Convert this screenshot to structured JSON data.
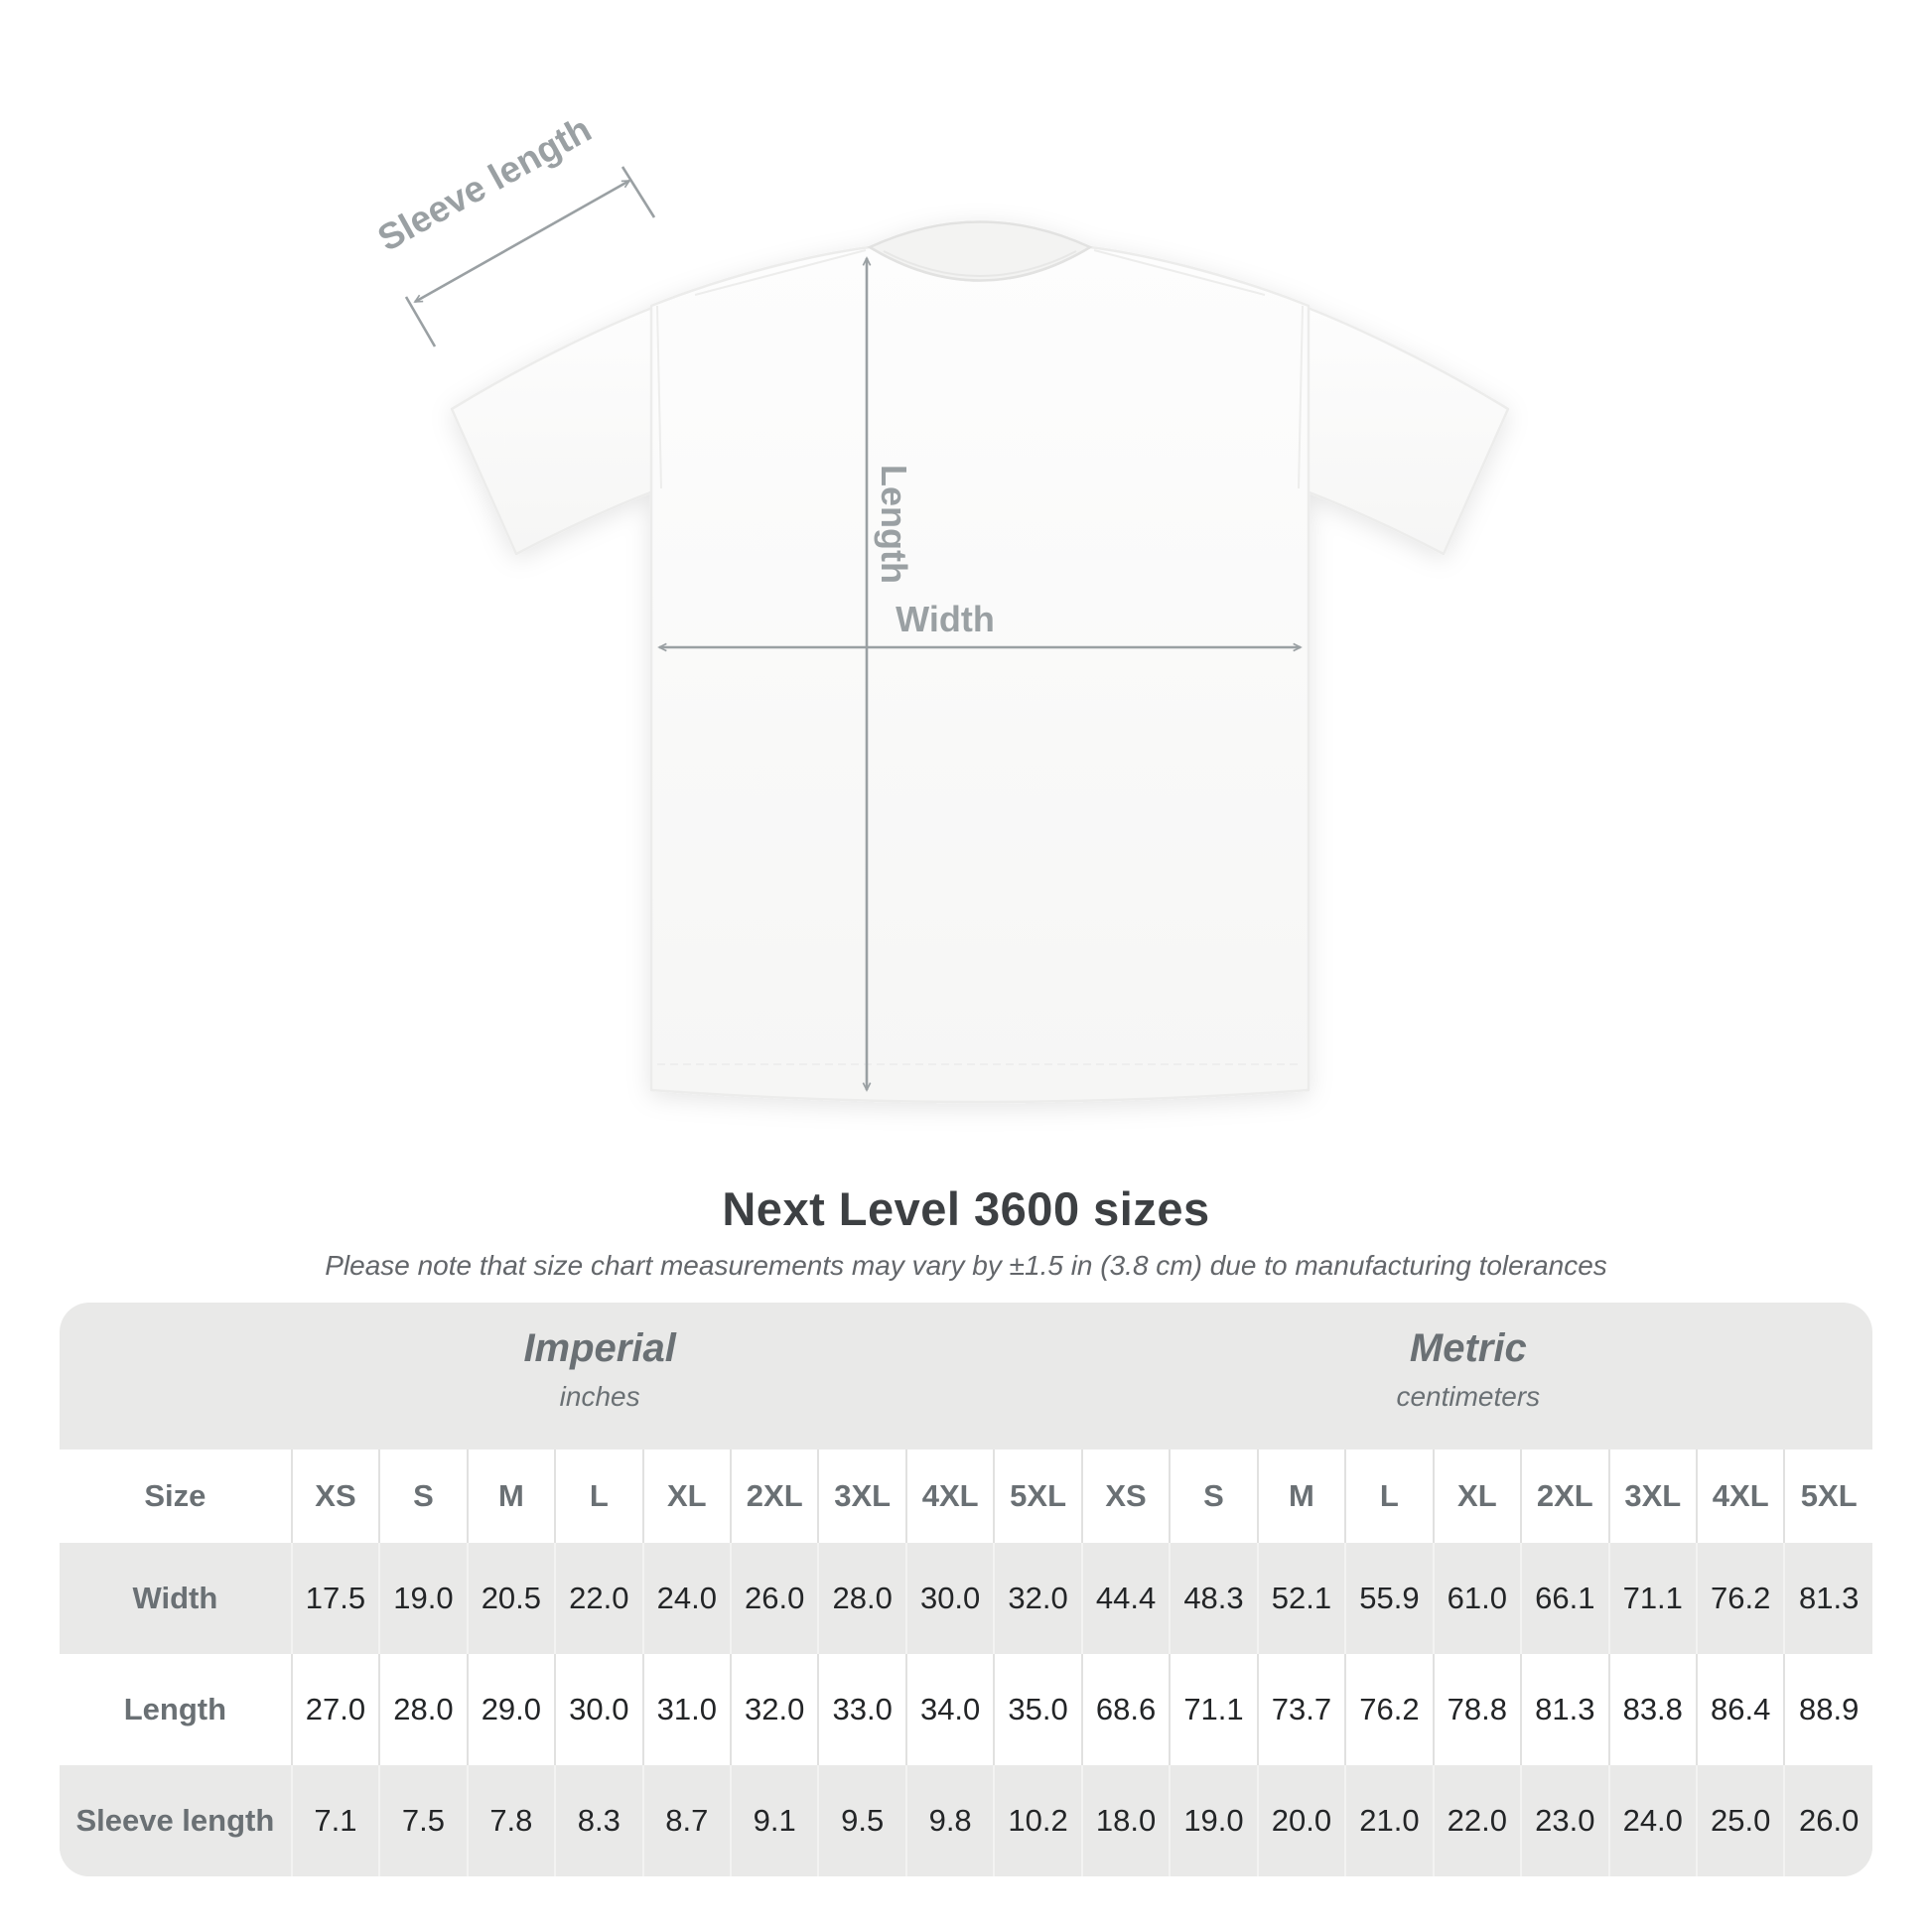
{
  "diagram": {
    "sleeve_length_label": "Sleeve length",
    "length_label": "Length",
    "width_label": "Width"
  },
  "title": "Next Level 3600 sizes",
  "subtitle": "Please note that size chart measurements may vary by ±1.5 in (3.8 cm) due to manufacturing tolerances",
  "table": {
    "size_header": "Size",
    "unit_groups": [
      {
        "label": "Imperial",
        "sublabel": "inches"
      },
      {
        "label": "Metric",
        "sublabel": "centimeters"
      }
    ],
    "sizes": [
      "XS",
      "S",
      "M",
      "L",
      "XL",
      "2XL",
      "3XL",
      "4XL",
      "5XL"
    ],
    "rows": [
      {
        "label": "Width",
        "imperial": [
          "17.5",
          "19.0",
          "20.5",
          "22.0",
          "24.0",
          "26.0",
          "28.0",
          "30.0",
          "32.0"
        ],
        "metric": [
          "44.4",
          "48.3",
          "52.1",
          "55.9",
          "61.0",
          "66.1",
          "71.1",
          "76.2",
          "81.3"
        ]
      },
      {
        "label": "Length",
        "imperial": [
          "27.0",
          "28.0",
          "29.0",
          "30.0",
          "31.0",
          "32.0",
          "33.0",
          "34.0",
          "35.0"
        ],
        "metric": [
          "68.6",
          "71.1",
          "73.7",
          "76.2",
          "78.8",
          "81.3",
          "83.8",
          "86.4",
          "88.9"
        ]
      },
      {
        "label": "Sleeve length",
        "imperial": [
          "7.1",
          "7.5",
          "7.8",
          "8.3",
          "8.7",
          "9.1",
          "9.5",
          "9.8",
          "10.2"
        ],
        "metric": [
          "18.0",
          "19.0",
          "20.0",
          "21.0",
          "22.0",
          "23.0",
          "24.0",
          "25.0",
          "26.0"
        ]
      }
    ]
  },
  "chart_data": {
    "type": "table",
    "title": "Next Level 3600 sizes",
    "note": "Please note that size chart measurements may vary by ±1.5 in (3.8 cm) due to manufacturing tolerances",
    "unit_groups": [
      {
        "label": "Imperial",
        "units": "inches",
        "sizes": [
          "XS",
          "S",
          "M",
          "L",
          "XL",
          "2XL",
          "3XL",
          "4XL",
          "5XL"
        ]
      },
      {
        "label": "Metric",
        "units": "centimeters",
        "sizes": [
          "XS",
          "S",
          "M",
          "L",
          "XL",
          "2XL",
          "3XL",
          "4XL",
          "5XL"
        ]
      }
    ],
    "rows": [
      {
        "label": "Width",
        "imperial": [
          17.5,
          19.0,
          20.5,
          22.0,
          24.0,
          26.0,
          28.0,
          30.0,
          32.0
        ],
        "metric": [
          44.4,
          48.3,
          52.1,
          55.9,
          61.0,
          66.1,
          71.1,
          76.2,
          81.3
        ]
      },
      {
        "label": "Length",
        "imperial": [
          27.0,
          28.0,
          29.0,
          30.0,
          31.0,
          32.0,
          33.0,
          34.0,
          35.0
        ],
        "metric": [
          68.6,
          71.1,
          73.7,
          76.2,
          78.8,
          81.3,
          83.8,
          86.4,
          88.9
        ]
      },
      {
        "label": "Sleeve length",
        "imperial": [
          7.1,
          7.5,
          7.8,
          8.3,
          8.7,
          9.1,
          9.5,
          9.8,
          10.2
        ],
        "metric": [
          18.0,
          19.0,
          20.0,
          21.0,
          22.0,
          23.0,
          24.0,
          25.0,
          26.0
        ]
      }
    ]
  },
  "colors": {
    "panel_background": "#e9e9e8",
    "annotation_gray": "#9aa0a3",
    "label_gray": "#6a7074",
    "value_text": "#232527",
    "title_text": "#3d4043"
  }
}
